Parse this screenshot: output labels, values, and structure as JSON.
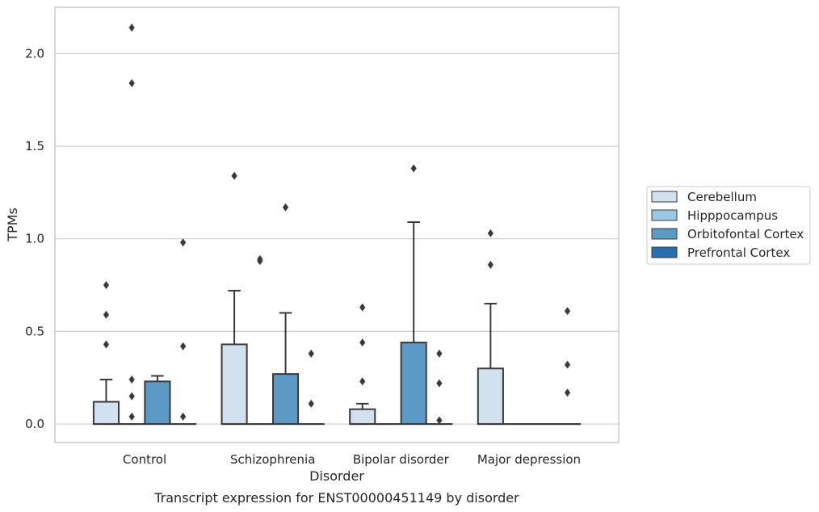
{
  "chart_data": {
    "type": "box",
    "xlabel": "Disorder",
    "ylabel": "TPMs",
    "caption": "Transcript expression for ENST00000451149 by disorder",
    "categories": [
      "Control",
      "Schizophrenia",
      "Bipolar disorder",
      "Major depression"
    ],
    "ylim": [
      -0.1,
      2.25
    ],
    "yticks": [
      0.0,
      0.5,
      1.0,
      1.5,
      2.0
    ],
    "ytick_labels": [
      "0.0",
      "0.5",
      "1.0",
      "1.5",
      "2.0"
    ],
    "grid": "horizontal",
    "legend_position": "right",
    "series": [
      {
        "name": "Cerebellum",
        "color": "#d1e1f0",
        "boxes": [
          {
            "q1": 0.0,
            "median": 0.0,
            "q3": 0.12,
            "whisker_low": 0.0,
            "whisker_high": 0.24,
            "outliers": [
              0.75,
              0.59,
              0.43
            ]
          },
          {
            "q1": 0.0,
            "median": 0.0,
            "q3": 0.43,
            "whisker_low": 0.0,
            "whisker_high": 0.72,
            "outliers": [
              1.34
            ]
          },
          {
            "q1": 0.0,
            "median": 0.0,
            "q3": 0.08,
            "whisker_low": 0.0,
            "whisker_high": 0.11,
            "outliers": [
              0.63,
              0.44,
              0.23
            ]
          },
          {
            "q1": 0.0,
            "median": 0.0,
            "q3": 0.3,
            "whisker_low": 0.0,
            "whisker_high": 0.65,
            "outliers": [
              1.03,
              0.86
            ]
          }
        ]
      },
      {
        "name": "Hipppocampus",
        "color": "#9ac8e0",
        "boxes": [
          {
            "q1": 0.0,
            "median": 0.0,
            "q3": 0.0,
            "whisker_low": 0.0,
            "whisker_high": 0.0,
            "outliers": [
              2.14,
              1.84,
              0.24,
              0.15,
              0.04
            ]
          },
          {
            "q1": 0.0,
            "median": 0.0,
            "q3": 0.0,
            "whisker_low": 0.0,
            "whisker_high": 0.0,
            "outliers": [
              0.89,
              0.88
            ]
          },
          {
            "q1": 0.0,
            "median": 0.0,
            "q3": 0.0,
            "whisker_low": 0.0,
            "whisker_high": 0.0,
            "outliers": []
          },
          {
            "q1": 0.0,
            "median": 0.0,
            "q3": 0.0,
            "whisker_low": 0.0,
            "whisker_high": 0.0,
            "outliers": []
          }
        ]
      },
      {
        "name": "Orbitofontal Cortex",
        "color": "#5a9ac5",
        "boxes": [
          {
            "q1": 0.0,
            "median": 0.0,
            "q3": 0.23,
            "whisker_low": 0.0,
            "whisker_high": 0.26,
            "outliers": []
          },
          {
            "q1": 0.0,
            "median": 0.0,
            "q3": 0.27,
            "whisker_low": 0.0,
            "whisker_high": 0.6,
            "outliers": [
              1.17
            ]
          },
          {
            "q1": 0.0,
            "median": 0.0,
            "q3": 0.44,
            "whisker_low": 0.0,
            "whisker_high": 1.09,
            "outliers": [
              1.38
            ]
          },
          {
            "q1": 0.0,
            "median": 0.0,
            "q3": 0.0,
            "whisker_low": 0.0,
            "whisker_high": 0.0,
            "outliers": []
          }
        ]
      },
      {
        "name": "Prefrontal Cortex",
        "color": "#2b6ead",
        "boxes": [
          {
            "q1": 0.0,
            "median": 0.0,
            "q3": 0.0,
            "whisker_low": 0.0,
            "whisker_high": 0.0,
            "outliers": [
              0.98,
              0.42,
              0.04
            ]
          },
          {
            "q1": 0.0,
            "median": 0.0,
            "q3": 0.0,
            "whisker_low": 0.0,
            "whisker_high": 0.0,
            "outliers": [
              0.38,
              0.11
            ]
          },
          {
            "q1": 0.0,
            "median": 0.0,
            "q3": 0.0,
            "whisker_low": 0.0,
            "whisker_high": 0.0,
            "outliers": [
              0.38,
              0.22,
              0.02
            ]
          },
          {
            "q1": 0.0,
            "median": 0.0,
            "q3": 0.0,
            "whisker_low": 0.0,
            "whisker_high": 0.0,
            "outliers": [
              0.61,
              0.32,
              0.17
            ]
          }
        ]
      }
    ]
  }
}
